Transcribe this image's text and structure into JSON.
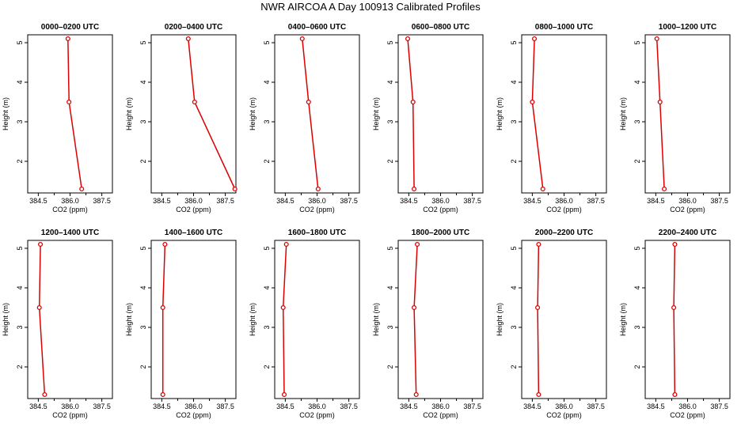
{
  "chart_data": {
    "title": "NWR AIRCOA A  Day 100913  Calibrated Profiles",
    "type": "line",
    "xlabel": "CO2 (ppm)",
    "ylabel": "Height (m)",
    "xlim": [
      384.0,
      388.0
    ],
    "ylim": [
      1.2,
      5.2
    ],
    "xticks": [
      384.5,
      386.0,
      387.5
    ],
    "xtick_labels": [
      "384.5",
      "386.0",
      "387.5"
    ],
    "yticks": [
      2,
      3,
      4,
      5
    ],
    "ytick_labels": [
      "2",
      "3",
      "4",
      "5"
    ],
    "heights": [
      5.1,
      3.5,
      1.3
    ],
    "series_color": "#dd0000",
    "panels": [
      {
        "title": "0000–0200 UTC",
        "co2": [
          385.9,
          385.95,
          386.55
        ]
      },
      {
        "title": "0200–0400 UTC",
        "co2": [
          385.75,
          386.05,
          387.95
        ]
      },
      {
        "title": "0400–0600 UTC",
        "co2": [
          385.3,
          385.6,
          386.05
        ]
      },
      {
        "title": "0600–0800 UTC",
        "co2": [
          384.45,
          384.7,
          384.75
        ]
      },
      {
        "title": "0800–1000 UTC",
        "co2": [
          384.6,
          384.5,
          385.0
        ]
      },
      {
        "title": "1000–1200 UTC",
        "co2": [
          384.55,
          384.7,
          384.9
        ]
      },
      {
        "title": "1200–1400 UTC",
        "co2": [
          384.6,
          384.55,
          384.8
        ]
      },
      {
        "title": "1400–1600 UTC",
        "co2": [
          384.65,
          384.55,
          384.55
        ]
      },
      {
        "title": "1600–1800 UTC",
        "co2": [
          384.55,
          384.4,
          384.45
        ]
      },
      {
        "title": "1800–2000 UTC",
        "co2": [
          384.9,
          384.75,
          384.85
        ]
      },
      {
        "title": "2000–2200 UTC",
        "co2": [
          384.8,
          384.75,
          384.8
        ]
      },
      {
        "title": "2200–2400 UTC",
        "co2": [
          385.4,
          385.35,
          385.4
        ]
      }
    ]
  }
}
